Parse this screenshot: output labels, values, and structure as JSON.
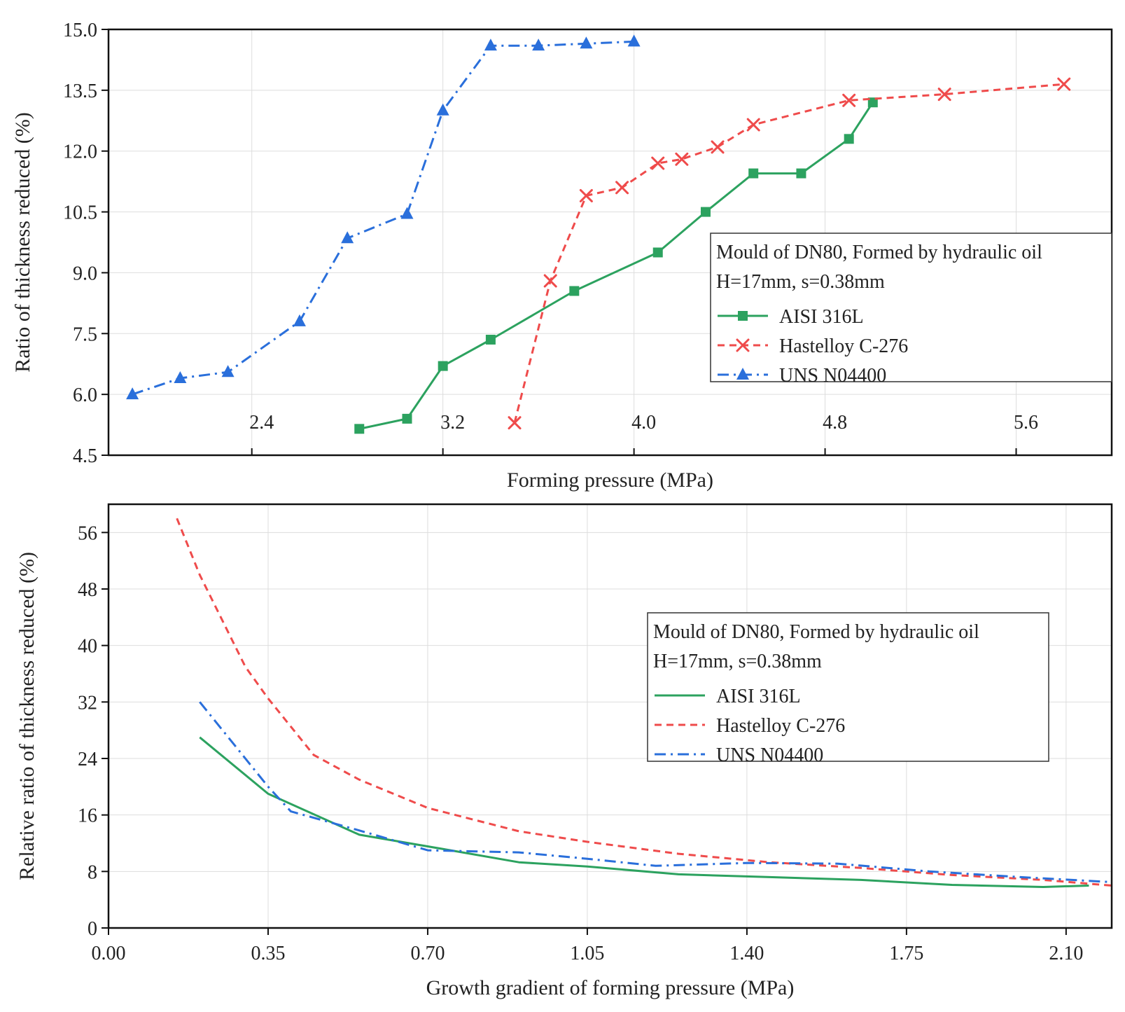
{
  "colors": {
    "aisi": "#2ca25f",
    "hastelloy": "#ef4b4b",
    "uns": "#2a6fdb",
    "grid": "#dddddd",
    "axis": "#111111"
  },
  "chart_data": [
    {
      "type": "line",
      "xlabel": "Forming pressure (MPa)",
      "ylabel": "Ratio of thickness reduced (%)",
      "xlim": [
        1.8,
        6.0
      ],
      "ylim": [
        4.5,
        15.0
      ],
      "xticks": [
        2.4,
        3.2,
        4.0,
        4.8,
        5.6
      ],
      "xtick_labels": [
        "2.4",
        "3.2",
        "4.0",
        "4.8",
        "5.6"
      ],
      "yticks": [
        4.5,
        6.0,
        7.5,
        9.0,
        10.5,
        12.0,
        13.5,
        15.0
      ],
      "ytick_labels": [
        "4.5",
        "6.0",
        "7.5",
        "9.0",
        "10.5",
        "12.0",
        "13.5",
        "15.0"
      ],
      "grid": true,
      "legend": {
        "title_lines": [
          "Mould of DN80, Formed by hydraulic oil",
          "H=17mm, s=0.38mm"
        ],
        "position": "center-right"
      },
      "series": [
        {
          "key": "aisi",
          "name": "AISI 316L",
          "line": "solid",
          "marker": "square",
          "x": [
            2.85,
            3.05,
            3.2,
            3.4,
            3.75,
            4.1,
            4.3,
            4.5,
            4.7,
            4.9,
            5.0
          ],
          "y": [
            5.15,
            5.4,
            6.7,
            7.35,
            8.55,
            9.5,
            10.5,
            11.45,
            11.45,
            12.3,
            13.2
          ]
        },
        {
          "key": "hastelloy",
          "name": "Hastelloy C-276",
          "line": "dashed",
          "marker": "x",
          "x": [
            3.5,
            3.65,
            3.8,
            3.95,
            4.1,
            4.2,
            4.35,
            4.5,
            4.9,
            5.3,
            5.8
          ],
          "y": [
            5.3,
            8.8,
            10.9,
            11.1,
            11.7,
            11.8,
            12.1,
            12.65,
            13.25,
            13.4,
            13.65
          ]
        },
        {
          "key": "uns",
          "name": "UNS N04400",
          "line": "dashdot",
          "marker": "triangle",
          "x": [
            1.9,
            2.1,
            2.3,
            2.6,
            2.8,
            3.05,
            3.2,
            3.4,
            3.6,
            3.8,
            4.0
          ],
          "y": [
            6.0,
            6.4,
            6.55,
            7.8,
            9.85,
            10.45,
            13.0,
            14.6,
            14.6,
            14.65,
            14.7
          ]
        }
      ]
    },
    {
      "type": "line",
      "xlabel": "Growth gradient of forming pressure (MPa)",
      "ylabel": "Relative ratio of thickness reduced (%)",
      "xlim": [
        0.0,
        2.2
      ],
      "ylim": [
        0,
        60
      ],
      "xticks": [
        0.0,
        0.35,
        0.7,
        1.05,
        1.4,
        1.75,
        2.1
      ],
      "xtick_labels": [
        "0.00",
        "0.35",
        "0.70",
        "1.05",
        "1.40",
        "1.75",
        "2.10"
      ],
      "yticks": [
        0,
        8,
        16,
        24,
        32,
        40,
        48,
        56
      ],
      "ytick_labels": [
        "0",
        "8",
        "16",
        "24",
        "32",
        "40",
        "48",
        "56"
      ],
      "grid": true,
      "legend": {
        "title_lines": [
          "Mould of DN80, Formed by hydraulic oil",
          "H=17mm, s=0.38mm"
        ],
        "position": "center-right"
      },
      "series": [
        {
          "key": "aisi",
          "name": "AISI 316L",
          "line": "solid",
          "marker": "none",
          "x": [
            0.2,
            0.35,
            0.55,
            0.75,
            0.9,
            1.05,
            1.25,
            1.45,
            1.65,
            1.85,
            2.05,
            2.15
          ],
          "y": [
            27.0,
            19.0,
            13.2,
            11.0,
            9.3,
            8.7,
            7.6,
            7.2,
            6.8,
            6.1,
            5.8,
            6.0
          ]
        },
        {
          "key": "hastelloy",
          "name": "Hastelloy C-276",
          "line": "dashed",
          "marker": "none",
          "x": [
            0.15,
            0.2,
            0.3,
            0.35,
            0.45,
            0.55,
            0.7,
            0.9,
            1.05,
            1.25,
            1.45,
            1.65,
            1.85,
            2.05,
            2.2
          ],
          "y": [
            58.0,
            50.0,
            37.0,
            32.5,
            24.5,
            21.0,
            17.0,
            13.7,
            12.2,
            10.5,
            9.3,
            8.5,
            7.5,
            6.8,
            6.0
          ]
        },
        {
          "key": "uns",
          "name": "UNS N04400",
          "line": "dashdot",
          "marker": "none",
          "x": [
            0.2,
            0.35,
            0.4,
            0.55,
            0.7,
            0.9,
            1.05,
            1.2,
            1.4,
            1.6,
            1.8,
            2.0,
            2.2
          ],
          "y": [
            32.0,
            20.0,
            16.5,
            13.8,
            11.0,
            10.7,
            9.8,
            8.8,
            9.2,
            9.1,
            8.0,
            7.2,
            6.5
          ]
        }
      ]
    }
  ]
}
